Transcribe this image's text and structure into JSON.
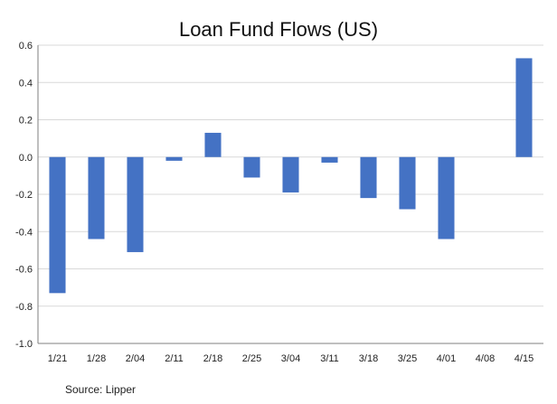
{
  "chart_data": {
    "type": "bar",
    "title": "Loan Fund Flows (US)",
    "source": "Source: Lipper",
    "categories": [
      "1/21",
      "1/28",
      "2/04",
      "2/11",
      "2/18",
      "2/25",
      "3/04",
      "3/11",
      "3/18",
      "3/25",
      "4/01",
      "4/08",
      "4/15"
    ],
    "values": [
      -0.73,
      -0.44,
      -0.51,
      -0.02,
      0.13,
      -0.11,
      -0.19,
      -0.03,
      -0.22,
      -0.28,
      -0.44,
      0.0,
      0.53
    ],
    "ylim": [
      -1.0,
      0.6
    ],
    "yticks": [
      "0.6",
      "0.4",
      "0.2",
      "0.0",
      "-0.2",
      "-0.4",
      "-0.6",
      "-0.8",
      "-1.0"
    ],
    "grid": true,
    "legend": false,
    "bar_color": "#4472c4",
    "grid_color": "#d9d9d9"
  }
}
